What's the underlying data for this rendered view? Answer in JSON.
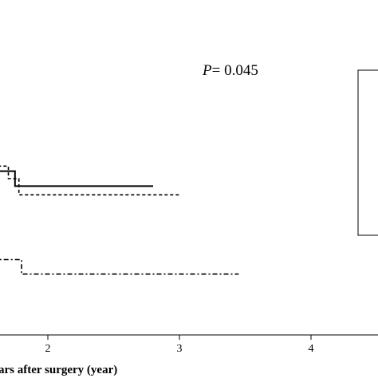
{
  "chart_data": {
    "type": "line",
    "step": true,
    "p_value": {
      "label": "P",
      "text": "= 0.045"
    },
    "xlabel": "ars after surgery (year)",
    "ylabel": "",
    "xlim": [
      -0.35,
      4.2
    ],
    "ylim": [
      0,
      1
    ],
    "x_ticks": [
      2,
      3,
      4
    ],
    "x_tick_labels": [
      "2",
      "3",
      "4"
    ],
    "grid": false,
    "legend": "right (box, entries cropped)",
    "series": [
      {
        "style": "solid",
        "color": "#000000",
        "x": [
          -0.35,
          0.5,
          0.5,
          0.6,
          0.6,
          1.25,
          1.25,
          1.75,
          1.75,
          2.8
        ],
        "y": [
          0.715,
          0.715,
          0.66,
          0.66,
          0.632,
          0.632,
          0.587,
          0.587,
          0.533,
          0.533
        ]
      },
      {
        "style": "dotted",
        "color": "#000000",
        "x": [
          -0.35,
          0.48,
          0.48,
          0.6,
          0.6,
          1.25,
          1.25,
          1.7,
          1.7,
          1.78,
          1.78,
          3.0
        ],
        "y": [
          0.68,
          0.68,
          0.625,
          0.625,
          0.597,
          0.597,
          0.605,
          0.605,
          0.56,
          0.56,
          0.502,
          0.502
        ]
      },
      {
        "style": "dash-dot",
        "color": "#000000",
        "x": [
          -0.35,
          0.5,
          0.5,
          0.55,
          0.55,
          1.0,
          1.0,
          1.15,
          1.15,
          1.2,
          1.2,
          1.25,
          1.25,
          1.3,
          1.3,
          1.8,
          1.8,
          3.45
        ],
        "y": [
          0.52,
          0.52,
          0.49,
          0.49,
          0.47,
          0.47,
          0.44,
          0.44,
          0.4,
          0.4,
          0.37,
          0.37,
          0.33,
          0.33,
          0.27,
          0.27,
          0.218,
          0.218
        ]
      }
    ]
  },
  "colors": {
    "line": "#000000",
    "background": "#ffffff"
  }
}
